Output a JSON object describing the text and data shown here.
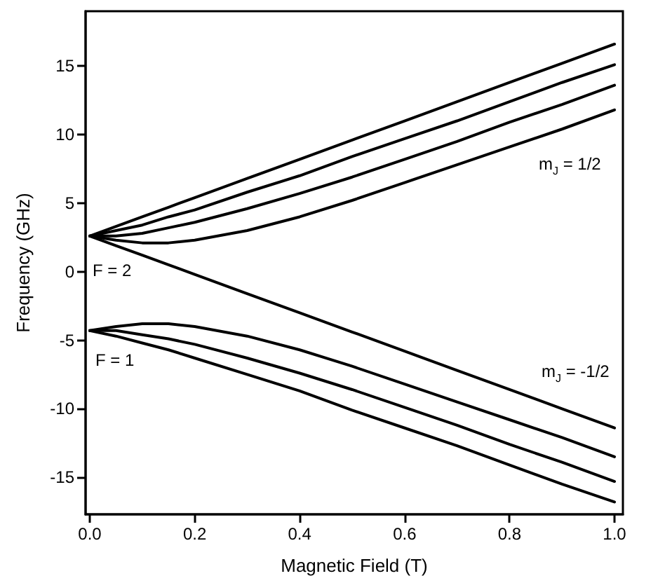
{
  "chart_data": {
    "type": "line",
    "xlabel": "Magnetic Field (T)",
    "ylabel": "Frequency (GHz)",
    "x": [
      0,
      0.05,
      0.1,
      0.15,
      0.2,
      0.3,
      0.4,
      0.5,
      0.6,
      0.7,
      0.8,
      0.9,
      1.0
    ],
    "series": [
      {
        "color": "#000000",
        "values": [
          2.6,
          3.3,
          4.0,
          4.7,
          5.4,
          6.8,
          8.2,
          9.6,
          11.0,
          12.4,
          13.8,
          15.2,
          16.6
        ]
      },
      {
        "color": "#000000",
        "values": [
          2.6,
          3.0,
          3.4,
          4.0,
          4.5,
          5.8,
          7.0,
          8.4,
          9.7,
          11.0,
          12.4,
          13.8,
          15.1
        ]
      },
      {
        "color": "#000000",
        "values": [
          2.6,
          2.6,
          2.8,
          3.2,
          3.6,
          4.6,
          5.7,
          6.9,
          8.2,
          9.5,
          10.9,
          12.2,
          13.6
        ]
      },
      {
        "color": "#000000",
        "values": [
          2.6,
          2.3,
          2.1,
          2.1,
          2.3,
          3.0,
          4.0,
          5.2,
          6.5,
          7.8,
          9.1,
          10.4,
          11.8
        ]
      },
      {
        "color": "#000000",
        "values": [
          2.6,
          1.9,
          1.2,
          0.5,
          -0.2,
          -1.6,
          -3.0,
          -4.4,
          -5.8,
          -7.2,
          -8.6,
          -10.0,
          -11.4
        ]
      },
      {
        "color": "#000000",
        "values": [
          -4.3,
          -4.0,
          -3.8,
          -3.8,
          -4.0,
          -4.7,
          -5.7,
          -6.9,
          -8.2,
          -9.5,
          -10.8,
          -12.1,
          -13.5
        ]
      },
      {
        "color": "#000000",
        "values": [
          -4.3,
          -4.3,
          -4.6,
          -4.9,
          -5.3,
          -6.3,
          -7.4,
          -8.6,
          -9.9,
          -11.2,
          -12.6,
          -13.9,
          -15.3
        ]
      },
      {
        "color": "#000000",
        "values": [
          -4.3,
          -4.7,
          -5.2,
          -5.7,
          -6.3,
          -7.5,
          -8.7,
          -10.1,
          -11.4,
          -12.7,
          -14.1,
          -15.5,
          -16.8
        ]
      }
    ],
    "xlim": [
      -0.008,
      1.016
    ],
    "xticks": [
      {
        "value": 0,
        "label": "0.0"
      },
      0.2,
      0.4,
      0.6,
      0.8,
      {
        "value": 1,
        "label": "1.0"
      }
    ],
    "ylim": [
      -17.7,
      19
    ],
    "yticks": [
      -15,
      -10,
      -5,
      0,
      5,
      10,
      15
    ],
    "annotations": [
      "F = 2",
      "F = 1",
      "m$_{J}$ = 1/2",
      "m$_{J}$ = -1/2"
    ],
    "grid": false,
    "marker": "none",
    "line_style": "solid"
  }
}
